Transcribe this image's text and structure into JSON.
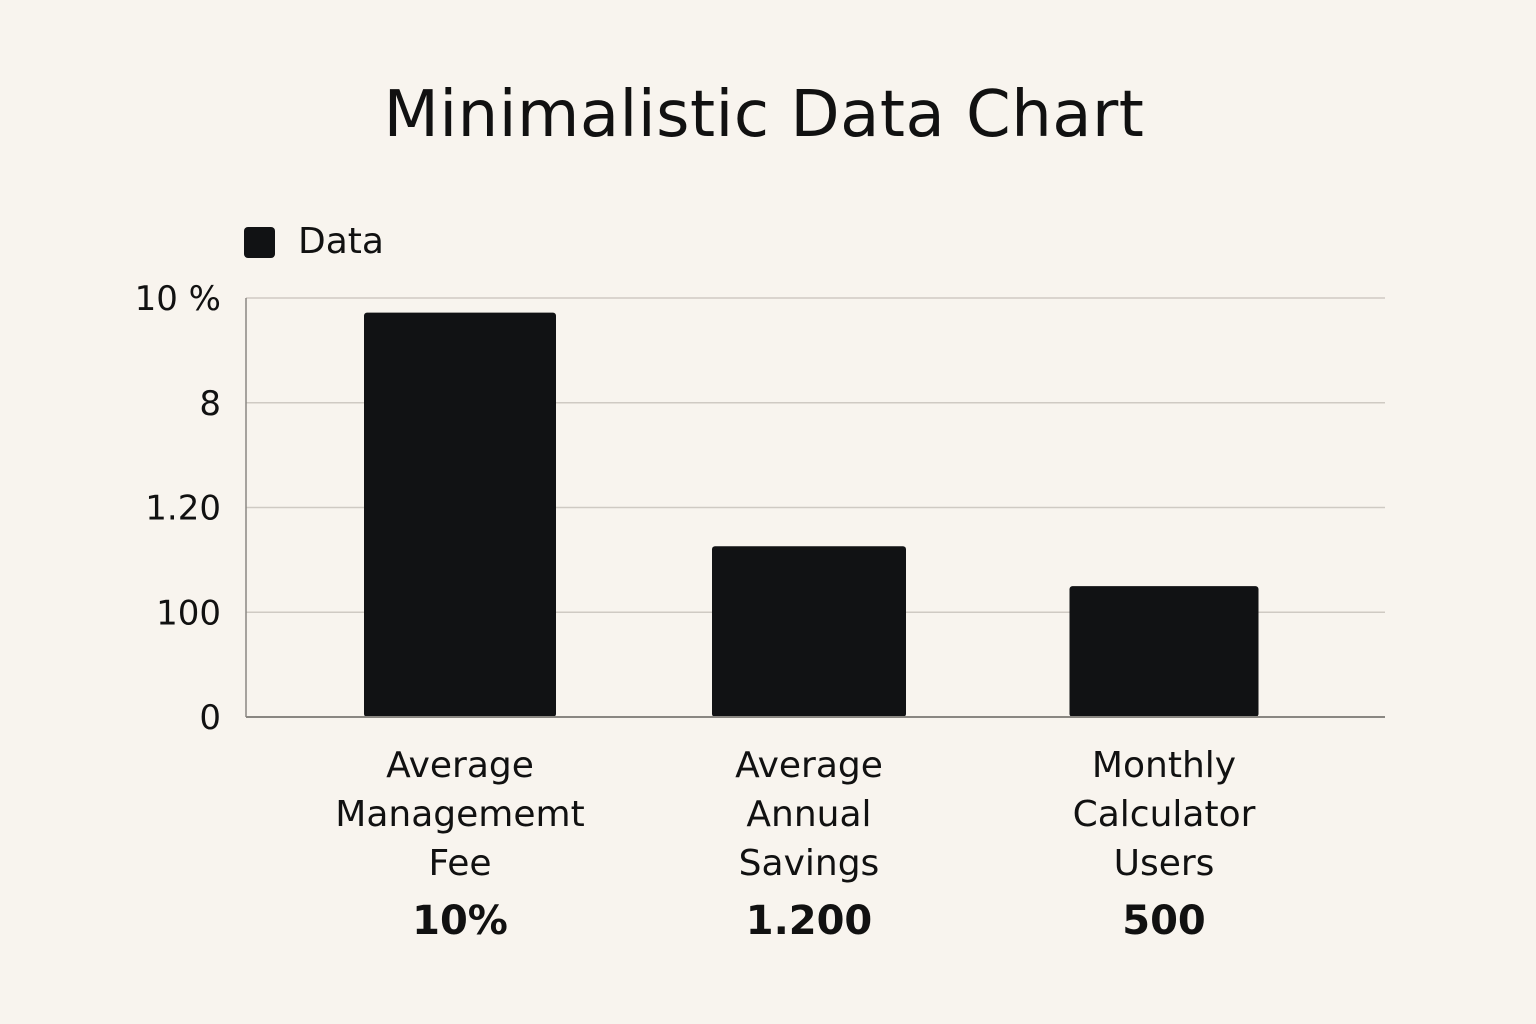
{
  "chart_data": {
    "type": "bar",
    "title": "Minimalistic Data Chart",
    "xlabel": "",
    "ylabel": "",
    "grid": true,
    "legend_placement": "top-left",
    "legend": [
      {
        "label": "Data",
        "color": "#111214"
      }
    ],
    "y_tick_labels": [
      "0",
      "100",
      "1.20",
      "8",
      "10 %"
    ],
    "y_tick_positions": [
      0,
      1,
      2,
      3,
      4
    ],
    "ylim": [
      0,
      4
    ],
    "categories": [
      "Average\nManagememt\nFee",
      "Average\nAnnual\nSavings",
      "Monthly\nCalculator\nUsers"
    ],
    "value_labels": [
      "10%",
      "1.200",
      "500"
    ],
    "series": [
      {
        "name": "Data",
        "values": [
          3.86,
          1.63,
          1.25
        ],
        "color": "#111214"
      }
    ]
  }
}
